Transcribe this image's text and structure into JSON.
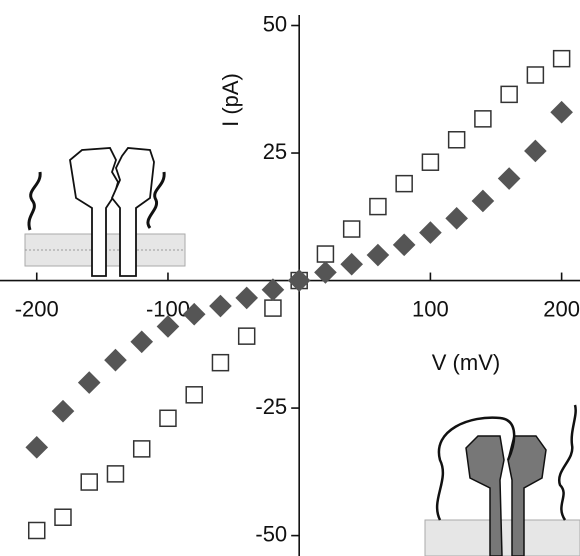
{
  "chart_data": {
    "type": "scatter",
    "x_label": "V (mV)",
    "y_label": "I (pA)",
    "x": [
      -200,
      -180,
      -160,
      -140,
      -120,
      -100,
      -80,
      -60,
      -40,
      -20,
      0,
      20,
      40,
      60,
      80,
      100,
      120,
      140,
      160,
      180,
      200
    ],
    "series": [
      {
        "marker": "square",
        "color": "#333333",
        "values": [
          -49,
          -46.4,
          -39.5,
          -37.9,
          -33,
          -27,
          -22.4,
          -16.1,
          -10.9,
          -5.4,
          0,
          5.2,
          10.1,
          14.5,
          19,
          23.2,
          27.6,
          31.7,
          36.5,
          40.3,
          43.5
        ]
      },
      {
        "marker": "diamond",
        "color": "#555555",
        "values": [
          -32.7,
          -25.6,
          -20,
          -15.6,
          -12,
          -9,
          -6.6,
          -5,
          -3.4,
          -1.8,
          0,
          1.6,
          3.2,
          5,
          7,
          9.4,
          12.2,
          15.6,
          20,
          25.4,
          33
        ]
      }
    ],
    "xlim": [
      -228,
      214
    ],
    "ylim": [
      -54,
      55
    ],
    "xticks": [
      -200,
      -100,
      100,
      200
    ],
    "yticks": [
      50,
      25,
      -25,
      -50
    ]
  }
}
